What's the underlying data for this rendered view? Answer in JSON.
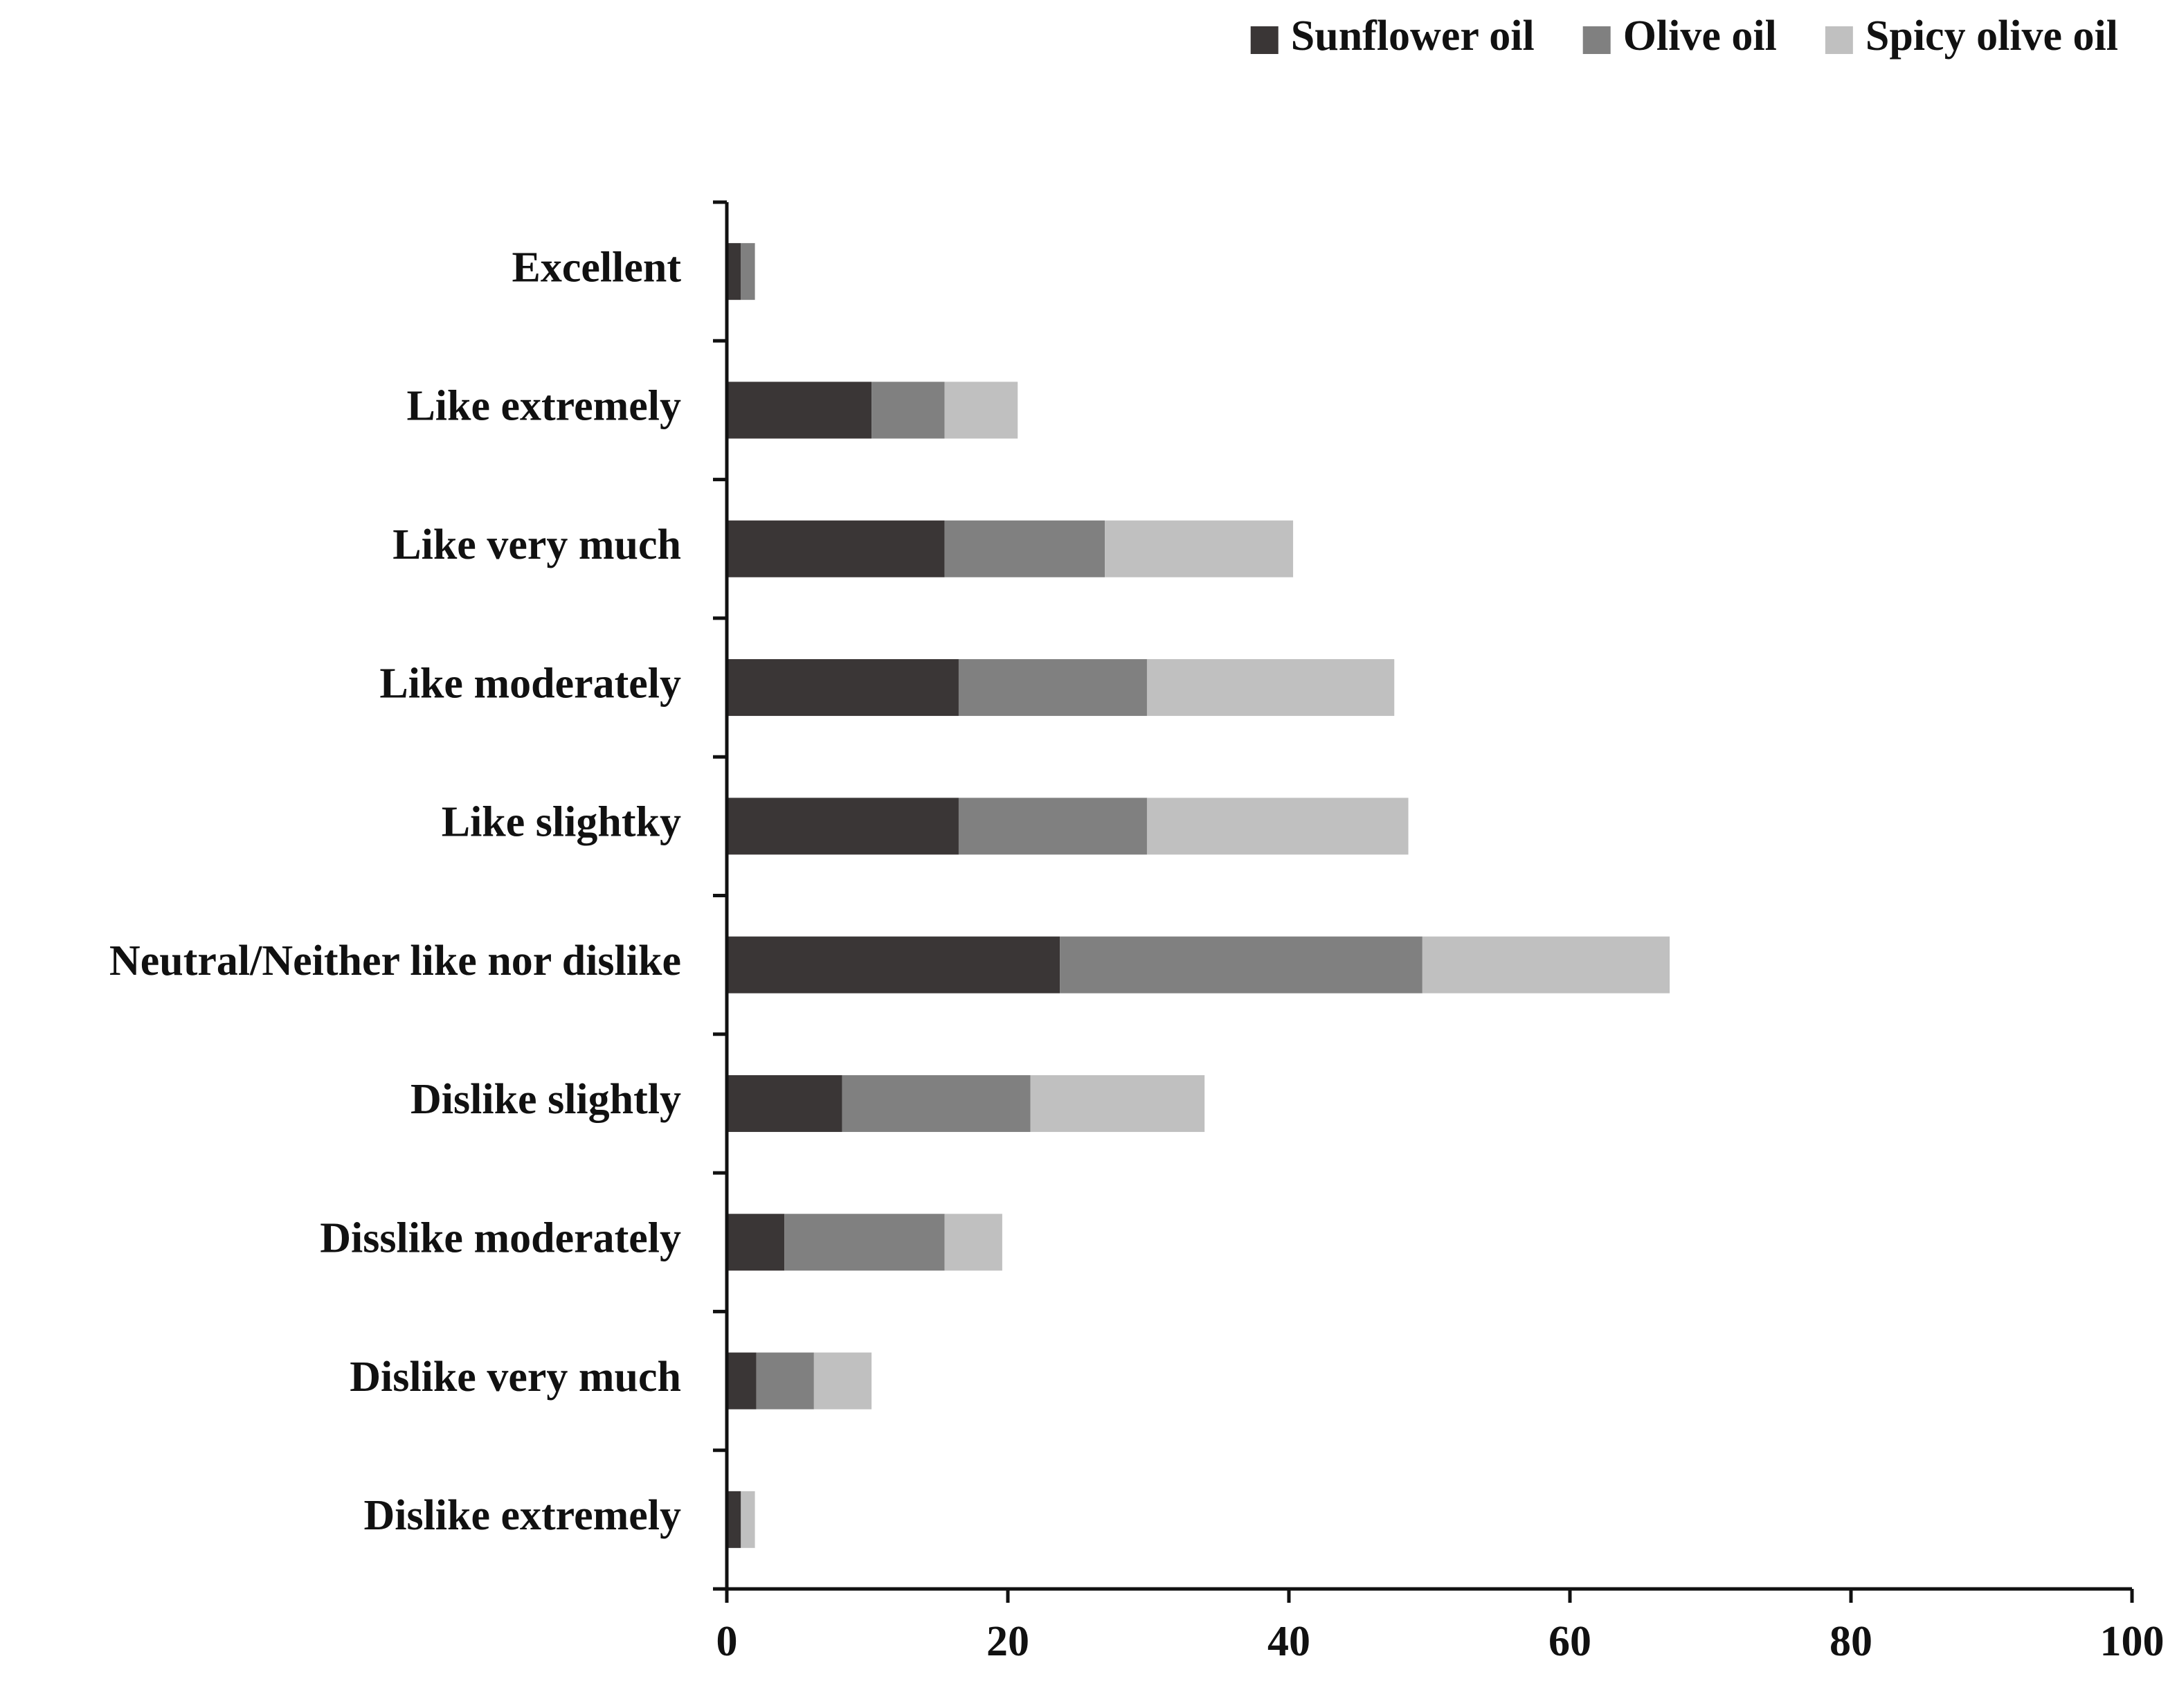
{
  "chart_data": {
    "type": "bar",
    "orientation": "horizontal",
    "stacked": true,
    "categories": [
      "Excellent",
      "Like extremely",
      "Like very much",
      "Like moderately",
      "Like slightky",
      "Neutral/Neither like nor dislike",
      "Dislike slightly",
      "Disslike moderately",
      "Dislike very much",
      "Dislike extremely"
    ],
    "series": [
      {
        "name": "Sunflower oil",
        "color": "#3a3636",
        "values": [
          1,
          10.3,
          15.5,
          16.5,
          16.5,
          23.7,
          8.2,
          4.1,
          2.1,
          1
        ]
      },
      {
        "name": "Olive oil",
        "color": "#808080",
        "values": [
          1,
          5.2,
          11.4,
          13.4,
          13.4,
          25.8,
          13.4,
          11.4,
          4.1,
          0
        ]
      },
      {
        "name": "Spicy olive oil",
        "color": "#c0c0c0",
        "values": [
          0,
          5.2,
          13.4,
          17.6,
          18.6,
          17.6,
          12.4,
          4.1,
          4.1,
          1
        ]
      }
    ],
    "xlim": [
      0,
      100
    ],
    "xticks": [
      0,
      20,
      40,
      60,
      80,
      100
    ],
    "title": "",
    "xlabel": "",
    "ylabel": "",
    "legend_position": "top-right",
    "grid": false
  }
}
